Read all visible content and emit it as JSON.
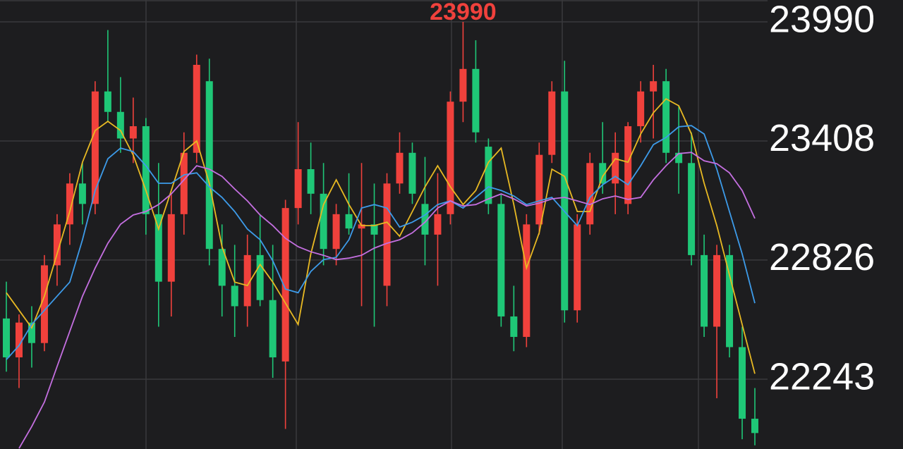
{
  "chart_data": {
    "type": "candlestick",
    "up_color": "#f0413c",
    "down_color": "#1fc777",
    "ylim": [
      21902,
      24097
    ],
    "yticks": [
      23990,
      23408,
      22826,
      22243
    ],
    "grid": true,
    "max_label_index": 36,
    "open": [
      22540,
      22350,
      22520,
      22420,
      22800,
      23000,
      23200,
      23100,
      23650,
      23550,
      23420,
      23480,
      23050,
      22720,
      23050,
      23350,
      23700,
      22880,
      22700,
      22600,
      22850,
      22630,
      22330,
      23080,
      23270,
      23150,
      22880,
      23050,
      22980,
      23000,
      22700,
      23200,
      23350,
      23100,
      22950,
      23050,
      23600,
      23760,
      23380,
      23100,
      22550,
      22450,
      23000,
      23340,
      23650,
      22580,
      23000,
      23300,
      23200,
      23100,
      23480,
      23650,
      23700,
      23350,
      23300,
      22850,
      22500,
      22850,
      22400,
      22050
    ],
    "high": [
      22720,
      22560,
      22600,
      22850,
      23050,
      23250,
      23300,
      23700,
      23950,
      23720,
      23620,
      23520,
      23300,
      23150,
      23450,
      23830,
      23810,
      23000,
      22900,
      22950,
      23050,
      22900,
      23120,
      23500,
      23400,
      23300,
      23100,
      23250,
      23300,
      23200,
      23250,
      23450,
      23400,
      23330,
      23250,
      23650,
      23990,
      23900,
      23420,
      23150,
      22700,
      23050,
      23400,
      23700,
      23800,
      23050,
      23350,
      23500,
      23450,
      23500,
      23700,
      23780,
      23760,
      23580,
      23450,
      22950,
      22900,
      22900,
      22500,
      22200
    ],
    "low": [
      22280,
      22200,
      22300,
      22380,
      22700,
      22900,
      23000,
      23050,
      23500,
      23350,
      23300,
      22950,
      22500,
      22550,
      22950,
      23300,
      22800,
      22550,
      22450,
      22500,
      22600,
      22250,
      22000,
      23000,
      23050,
      22800,
      22800,
      22950,
      22600,
      22500,
      22600,
      23150,
      23100,
      22800,
      22700,
      23000,
      23500,
      23400,
      23050,
      22500,
      22380,
      22400,
      22950,
      23300,
      22520,
      22520,
      22950,
      23150,
      23050,
      23050,
      23400,
      23420,
      23300,
      23150,
      22800,
      22450,
      22150,
      22350,
      21950,
      21920
    ],
    "close": [
      22350,
      22520,
      22420,
      22800,
      23000,
      23200,
      23100,
      23650,
      23550,
      23420,
      23480,
      23050,
      22720,
      23050,
      23350,
      23780,
      22880,
      22700,
      22600,
      22850,
      22630,
      22350,
      23080,
      23270,
      23150,
      22880,
      23050,
      22980,
      23000,
      22950,
      23200,
      23350,
      23150,
      22950,
      23050,
      23600,
      23760,
      23450,
      23100,
      22550,
      22450,
      23000,
      23340,
      23650,
      22580,
      23000,
      23300,
      23200,
      23350,
      23480,
      23650,
      23700,
      23350,
      23300,
      22850,
      22500,
      22850,
      22400,
      22050,
      21980
    ],
    "series": [
      {
        "color": "#e8b923",
        "values": [
          22666,
          22580,
          22494,
          22650,
          22856,
          23063,
          23304,
          23459,
          23504,
          23459,
          23339,
          23166,
          22977,
          23166,
          23356,
          23408,
          23201,
          22891,
          22718,
          22701,
          22804,
          22718,
          22615,
          22511,
          22856,
          23097,
          23218,
          23097,
          22994,
          22994,
          23011,
          22942,
          23063,
          23184,
          23287,
          23184,
          23097,
          23166,
          23304,
          23373,
          23097,
          22787,
          22959,
          23270,
          23235,
          23063,
          23063,
          23235,
          23321,
          23304,
          23442,
          23546,
          23614,
          23580,
          23442,
          23201,
          22994,
          22753,
          22511,
          22270
        ]
      },
      {
        "color": "#3d9be9",
        "values": [
          22339,
          22408,
          22511,
          22580,
          22649,
          22718,
          22925,
          23166,
          23321,
          23373,
          23356,
          23287,
          23201,
          23201,
          23242,
          23252,
          23184,
          23132,
          23063,
          22977,
          22925,
          22822,
          22684,
          22666,
          22770,
          22828,
          22839,
          22925,
          23080,
          23097,
          23080,
          22987,
          23011,
          23046,
          23097,
          23115,
          23080,
          23132,
          23184,
          23166,
          23139,
          23097,
          23115,
          23132,
          23063,
          22994,
          23132,
          23194,
          23235,
          23194,
          23287,
          23390,
          23425,
          23477,
          23483,
          23442,
          23270,
          23063,
          22856,
          22615
        ]
      },
      {
        "color": "#c46fe0",
        "values": [
          null,
          21905,
          22012,
          22132,
          22305,
          22477,
          22649,
          22787,
          22908,
          23001,
          23046,
          23063,
          23097,
          23149,
          23218,
          23287,
          23270,
          23235,
          23173,
          23115,
          23046,
          22994,
          22932,
          22891,
          22866,
          22849,
          22828,
          22835,
          22849,
          22884,
          22908,
          22925,
          22959,
          23011,
          23080,
          23115,
          23090,
          23097,
          23125,
          23149,
          23125,
          23090,
          23104,
          23125,
          23132,
          23115,
          23097,
          23125,
          23139,
          23122,
          23132,
          23218,
          23287,
          23346,
          23352,
          23311,
          23297,
          23252,
          23166,
          23029
        ]
      }
    ]
  }
}
